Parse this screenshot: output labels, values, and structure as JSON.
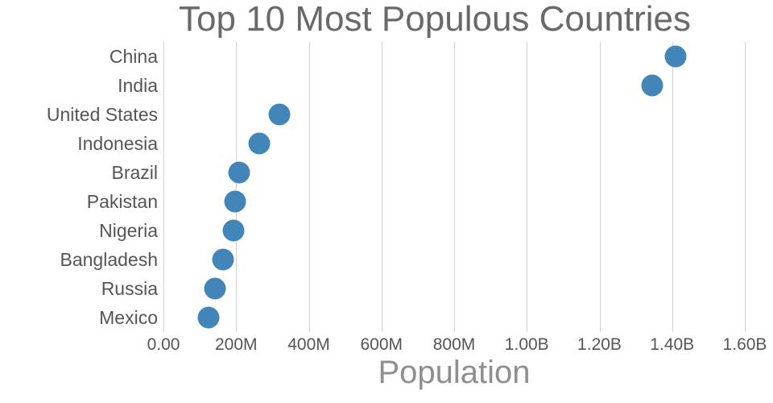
{
  "chart_data": {
    "type": "scatter",
    "subtype": "horizontal-dot-plot",
    "title": "Top 10 Most Populous Countries",
    "xlabel": "Population",
    "ylabel": "",
    "categories": [
      "China",
      "India",
      "United States",
      "Indonesia",
      "Brazil",
      "Pakistan",
      "Nigeria",
      "Bangladesh",
      "Russia",
      "Mexico"
    ],
    "values": [
      1409000000,
      1345000000,
      320000000,
      264000000,
      209000000,
      197000000,
      192000000,
      165000000,
      141000000,
      124000000
    ],
    "xlim": [
      0,
      1600000000
    ],
    "x_ticks": [
      {
        "label": "0.00",
        "value": 0
      },
      {
        "label": "200M",
        "value": 200000000
      },
      {
        "label": "400M",
        "value": 400000000
      },
      {
        "label": "600M",
        "value": 600000000
      },
      {
        "label": "800M",
        "value": 800000000
      },
      {
        "label": "1.00B",
        "value": 1000000000
      },
      {
        "label": "1.20B",
        "value": 1200000000
      },
      {
        "label": "1.40B",
        "value": 1400000000
      },
      {
        "label": "1.60B",
        "value": 1600000000
      }
    ],
    "grid": "vertical",
    "legend": "none",
    "marker_color": "#4285b9",
    "grid_color": "#d2d2d2",
    "text_color": "#555555",
    "title_color": "#696969",
    "axis_title_color": "#8f8f8f"
  }
}
